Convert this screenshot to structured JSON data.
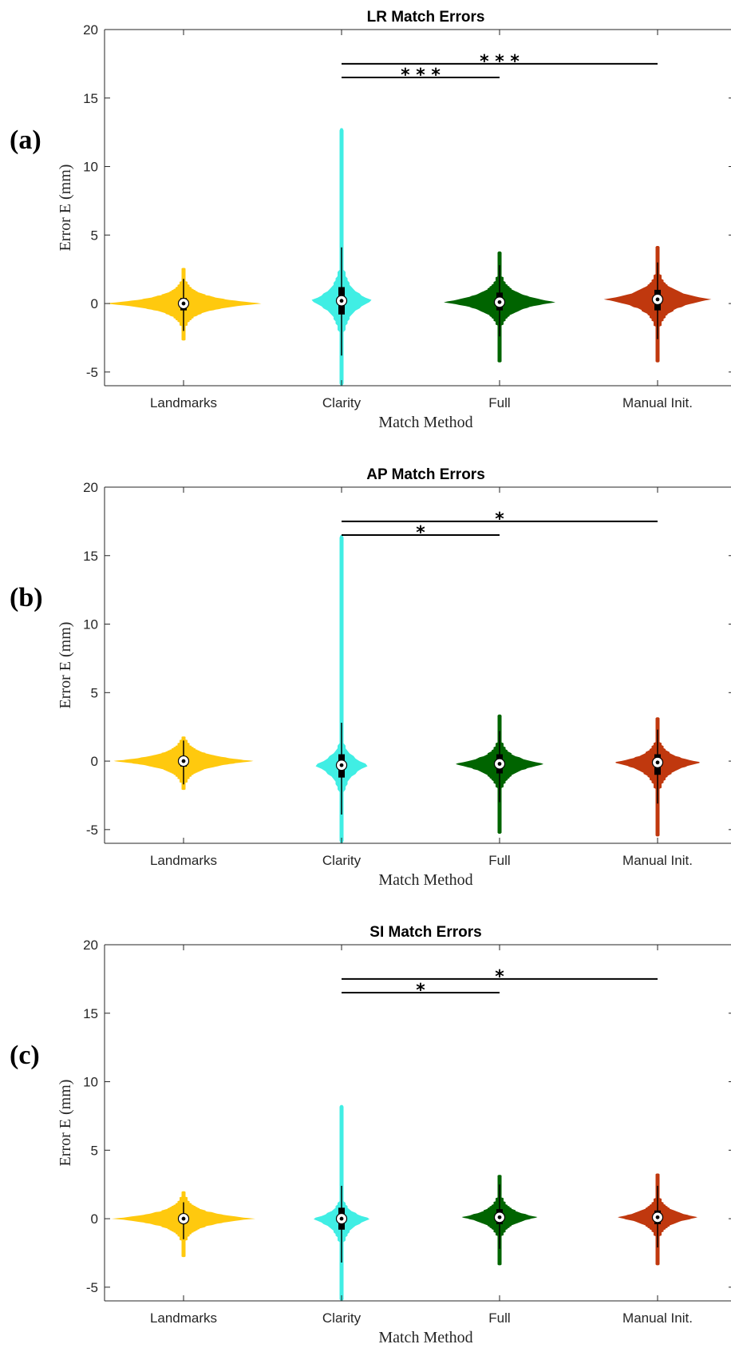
{
  "figure": {
    "panels": [
      {
        "label": "(a)",
        "title": "LR Match Errors"
      },
      {
        "label": "(b)",
        "title": "AP Match Errors"
      },
      {
        "label": "(c)",
        "title": "SI Match Errors"
      }
    ]
  },
  "colors": {
    "Landmarks": "#FFC90E",
    "Clarity": "#40EEE4",
    "Full": "#006400",
    "Manual Init.": "#C0380E"
  },
  "chart_data": [
    {
      "type": "violin",
      "title": "LR Match Errors",
      "xlabel": "Match Method",
      "ylabel": "Error E (mm)",
      "categories": [
        "Landmarks",
        "Clarity",
        "Full",
        "Manual Init."
      ],
      "ylim": [
        -6,
        20
      ],
      "yticks": [
        -5,
        0,
        5,
        10,
        15,
        20
      ],
      "yticklabels": [
        "-5",
        "0",
        "5",
        "10",
        "15",
        "20"
      ],
      "grid": false,
      "violins": [
        {
          "category": "Landmarks",
          "min": -2.7,
          "max": 2.6,
          "median": 0.0,
          "q1": -0.5,
          "q3": 0.4,
          "whisker_low": -2.0,
          "whisker_high": 1.8,
          "halfwidth": 1.0
        },
        {
          "category": "Clarity",
          "min": -6.0,
          "max": 12.8,
          "median": 0.2,
          "q1": -0.8,
          "q3": 1.2,
          "whisker_low": -3.8,
          "whisker_high": 4.1,
          "halfwidth": 0.4
        },
        {
          "category": "Full",
          "min": -4.3,
          "max": 3.8,
          "median": 0.1,
          "q1": -0.5,
          "q3": 0.8,
          "whisker_low": -2.4,
          "whisker_high": 2.8,
          "halfwidth": 0.72
        },
        {
          "category": "Manual Init.",
          "min": -4.3,
          "max": 4.2,
          "median": 0.3,
          "q1": -0.5,
          "q3": 1.0,
          "whisker_low": -2.6,
          "whisker_high": 3.0,
          "halfwidth": 0.68
        }
      ],
      "significance": [
        {
          "from": "Clarity",
          "to": "Full",
          "y": 16.5,
          "label": "* * *"
        },
        {
          "from": "Clarity",
          "to": "Manual Init.",
          "y": 17.5,
          "label": "* * *"
        }
      ]
    },
    {
      "type": "violin",
      "title": "AP Match Errors",
      "xlabel": "Match Method",
      "ylabel": "Error E (mm)",
      "categories": [
        "Landmarks",
        "Clarity",
        "Full",
        "Manual Init."
      ],
      "ylim": [
        -6,
        20
      ],
      "yticks": [
        -5,
        0,
        5,
        10,
        15,
        20
      ],
      "yticklabels": [
        "-5",
        "0",
        "5",
        "10",
        "15",
        "20"
      ],
      "grid": false,
      "violins": [
        {
          "category": "Landmarks",
          "min": -2.1,
          "max": 1.8,
          "median": 0.0,
          "q1": -0.4,
          "q3": 0.3,
          "whisker_low": -1.7,
          "whisker_high": 1.5,
          "halfwidth": 0.9
        },
        {
          "category": "Clarity",
          "min": -6.0,
          "max": 16.5,
          "median": -0.3,
          "q1": -1.2,
          "q3": 0.5,
          "whisker_low": -3.9,
          "whisker_high": 2.8,
          "halfwidth": 0.36
        },
        {
          "category": "Full",
          "min": -5.3,
          "max": 3.4,
          "median": -0.2,
          "q1": -0.9,
          "q3": 0.5,
          "whisker_low": -3.0,
          "whisker_high": 2.2,
          "halfwidth": 0.58
        },
        {
          "category": "Manual Init.",
          "min": -5.5,
          "max": 3.2,
          "median": -0.1,
          "q1": -1.0,
          "q3": 0.5,
          "whisker_low": -3.1,
          "whisker_high": 2.3,
          "halfwidth": 0.56
        }
      ],
      "significance": [
        {
          "from": "Clarity",
          "to": "Full",
          "y": 16.5,
          "label": "*"
        },
        {
          "from": "Clarity",
          "to": "Manual Init.",
          "y": 17.5,
          "label": "*"
        }
      ]
    },
    {
      "type": "violin",
      "title": "SI Match Errors",
      "xlabel": "Match Method",
      "ylabel": "Error E (mm)",
      "categories": [
        "Landmarks",
        "Clarity",
        "Full",
        "Manual Init."
      ],
      "ylim": [
        -6,
        20
      ],
      "yticks": [
        -5,
        0,
        5,
        10,
        15,
        20
      ],
      "yticklabels": [
        "-5",
        "0",
        "5",
        "10",
        "15",
        "20"
      ],
      "grid": false,
      "violins": [
        {
          "category": "Landmarks",
          "min": -2.8,
          "max": 2.0,
          "median": 0.0,
          "q1": -0.3,
          "q3": 0.3,
          "whisker_low": -1.5,
          "whisker_high": 1.2,
          "halfwidth": 0.9
        },
        {
          "category": "Clarity",
          "min": -6.0,
          "max": 8.3,
          "median": 0.0,
          "q1": -0.8,
          "q3": 0.8,
          "whisker_low": -3.2,
          "whisker_high": 2.4,
          "halfwidth": 0.37
        },
        {
          "category": "Full",
          "min": -3.4,
          "max": 3.2,
          "median": 0.1,
          "q1": -0.4,
          "q3": 0.7,
          "whisker_low": -2.2,
          "whisker_high": 2.5,
          "halfwidth": 0.49
        },
        {
          "category": "Manual Init.",
          "min": -3.4,
          "max": 3.3,
          "median": 0.1,
          "q1": -0.4,
          "q3": 0.6,
          "whisker_low": -2.1,
          "whisker_high": 2.4,
          "halfwidth": 0.53
        }
      ],
      "significance": [
        {
          "from": "Clarity",
          "to": "Full",
          "y": 16.5,
          "label": "*"
        },
        {
          "from": "Clarity",
          "to": "Manual Init.",
          "y": 17.5,
          "label": "*"
        }
      ]
    }
  ]
}
